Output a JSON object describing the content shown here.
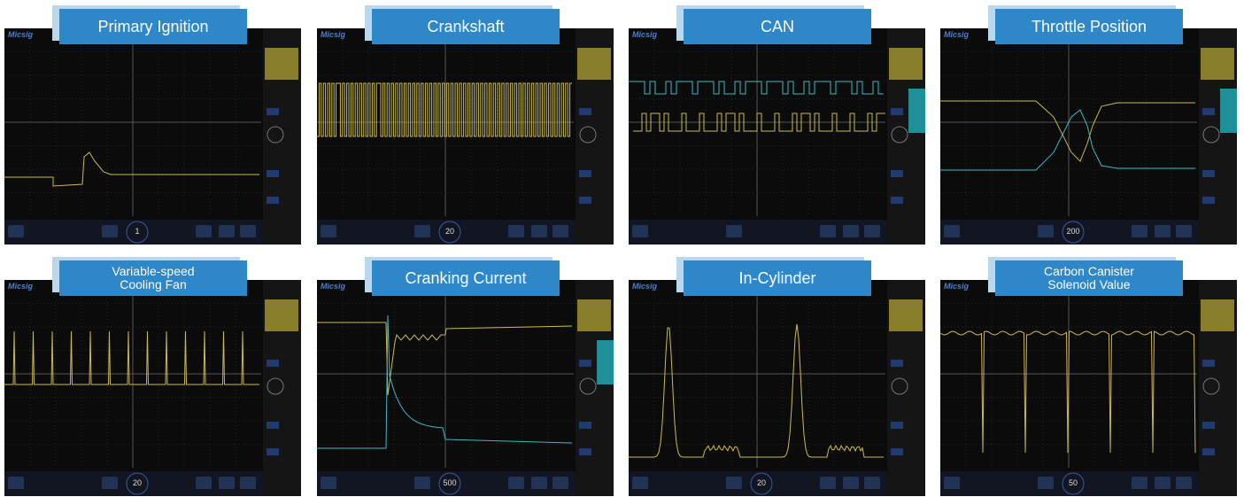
{
  "panels": [
    {
      "title": [
        "Primary Ignition"
      ],
      "brand": "Micsig",
      "timebase": "1"
    },
    {
      "title": [
        "Crankshaft"
      ],
      "brand": "Micsig",
      "timebase": "20"
    },
    {
      "title": [
        "CAN"
      ],
      "brand": "Micsig",
      "timebase": null
    },
    {
      "title": [
        "Throttle Position"
      ],
      "brand": "Micsig",
      "timebase": "200"
    },
    {
      "title": [
        "Variable-speed",
        "Cooling Fan"
      ],
      "brand": "Micsig",
      "timebase": "20"
    },
    {
      "title": [
        "Cranking Current"
      ],
      "brand": "Micsig",
      "timebase": "500"
    },
    {
      "title": [
        "In-Cylinder"
      ],
      "brand": "Micsig",
      "timebase": "20"
    },
    {
      "title": [
        "Carbon Canister",
        "Solenoid Value"
      ],
      "brand": "Micsig",
      "timebase": "50"
    }
  ]
}
